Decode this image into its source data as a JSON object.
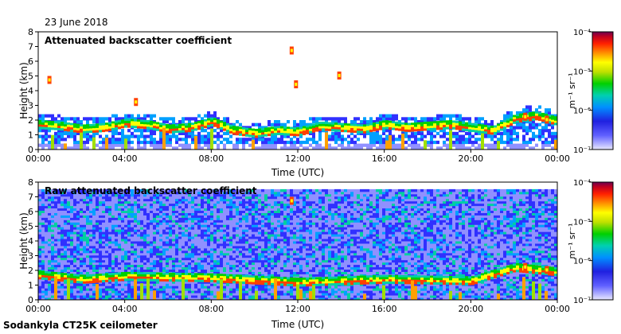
{
  "header": {
    "date": "23 June 2018"
  },
  "footer": {
    "instrument": "Sodankyla CT25K ceilometer"
  },
  "colors": {
    "scale": [
      "#e8e8ff",
      "#9090ff",
      "#3030ff",
      "#00a0ff",
      "#00d0a0",
      "#00d000",
      "#a0e000",
      "#ffff00",
      "#ffa000",
      "#ff4000",
      "#d00000",
      "#7a0040"
    ]
  },
  "chart_data": [
    {
      "type": "heatmap",
      "title": "Attenuated backscatter coefficient",
      "xlabel": "Time (UTC)",
      "ylabel": "Height (km)",
      "x_ticks": [
        "00:00",
        "04:00",
        "08:00",
        "12:00",
        "16:00",
        "20:00",
        "00:00"
      ],
      "x_range_hours": [
        0,
        24
      ],
      "y_ticks": [
        0,
        1,
        2,
        3,
        4,
        5,
        6,
        7,
        8
      ],
      "ylim": [
        0,
        8
      ],
      "colorbar": {
        "label": "m⁻¹ sr⁻¹",
        "ticks": [
          "10⁻⁴",
          "10⁻⁵",
          "10⁻⁶",
          "10⁻⁷"
        ]
      },
      "layers": {
        "boundary_layer_top_km": [
          [
            0,
            2.0
          ],
          [
            1,
            1.9
          ],
          [
            2,
            1.7
          ],
          [
            3,
            1.8
          ],
          [
            4,
            2.1
          ],
          [
            5,
            2.0
          ],
          [
            6,
            1.7
          ],
          [
            7,
            1.8
          ],
          [
            8,
            2.2
          ],
          [
            9,
            1.6
          ],
          [
            10,
            1.4
          ],
          [
            11,
            1.6
          ],
          [
            12,
            1.5
          ],
          [
            13,
            1.9
          ],
          [
            14,
            1.8
          ],
          [
            15,
            1.7
          ],
          [
            16,
            2.0
          ],
          [
            17,
            1.8
          ],
          [
            18,
            1.9
          ],
          [
            19,
            2.0
          ],
          [
            20,
            1.8
          ],
          [
            21,
            1.6
          ],
          [
            22,
            2.4
          ],
          [
            23,
            2.6
          ],
          [
            24,
            2.2
          ]
        ],
        "cloud_base_km": [
          [
            0.5,
            5.0
          ],
          [
            4.5,
            3.5
          ],
          [
            11.7,
            7.0
          ],
          [
            11.9,
            4.7
          ],
          [
            13.9,
            5.3
          ],
          [
            22.5,
            2.5
          ],
          [
            23.5,
            2.3
          ]
        ]
      }
    },
    {
      "type": "heatmap",
      "title": "Raw attenuated backscatter coefficient",
      "xlabel": "Time (UTC)",
      "ylabel": "Height (km)",
      "x_ticks": [
        "00:00",
        "04:00",
        "08:00",
        "12:00",
        "16:00",
        "20:00",
        "00:00"
      ],
      "x_range_hours": [
        0,
        24
      ],
      "y_ticks": [
        0,
        1,
        2,
        3,
        4,
        5,
        6,
        7,
        8
      ],
      "ylim": [
        0,
        8
      ],
      "colorbar": {
        "label": "m⁻¹ sr⁻¹",
        "ticks": [
          "10⁻⁴",
          "10⁻⁵",
          "10⁻⁶",
          "10⁻⁷"
        ]
      },
      "layers": {
        "boundary_layer_top_km": [
          [
            0,
            2.0
          ],
          [
            2,
            1.7
          ],
          [
            4,
            1.9
          ],
          [
            8,
            1.8
          ],
          [
            12,
            1.5
          ],
          [
            16,
            1.7
          ],
          [
            20,
            1.6
          ],
          [
            22,
            2.5
          ],
          [
            24,
            2.2
          ]
        ],
        "cloud_base_km": [
          [
            11.7,
            7.0
          ],
          [
            22.5,
            2.5
          ],
          [
            23.5,
            2.3
          ]
        ]
      }
    }
  ]
}
